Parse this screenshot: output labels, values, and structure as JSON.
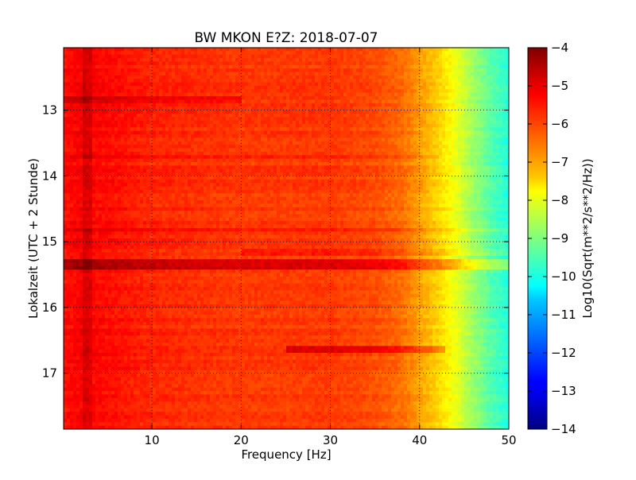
{
  "chart_data": {
    "type": "heatmap",
    "title": "BW MKON E?Z: 2018-07-07",
    "xlabel": "Frequency [Hz]",
    "ylabel": "Lokalzeit (UTC + 2 Stunde)",
    "xlim": [
      0.1,
      50
    ],
    "ylim": [
      12.05,
      17.85
    ],
    "y_inverted": true,
    "xticks": [
      10,
      20,
      30,
      40,
      50
    ],
    "yticks": [
      13,
      14,
      15,
      16,
      17
    ],
    "grid": true,
    "colorscale": "jet",
    "colorbar": {
      "label": "Log10(Sqrt(m**2/s**2/Hz))",
      "range": [
        -14,
        -4
      ],
      "ticks": [
        -4,
        -5,
        -6,
        -7,
        -8,
        -9,
        -10,
        -11,
        -12,
        -13,
        -14
      ]
    },
    "frequency_profile": {
      "frequency_hz": [
        0,
        2,
        10,
        20,
        30,
        35,
        38,
        40,
        42,
        44,
        46,
        48,
        50
      ],
      "log10_amplitude": [
        -5.4,
        -5.2,
        -5.6,
        -5.8,
        -5.8,
        -6.0,
        -6.3,
        -6.8,
        -7.3,
        -7.9,
        -8.7,
        -9.4,
        -9.9
      ]
    },
    "high_energy_bands": [
      {
        "time": 12.85,
        "from_hz": 0,
        "to_hz": 20,
        "delta": 0.5
      },
      {
        "time": 13.7,
        "from_hz": 0,
        "to_hz": 42,
        "delta": 0.4
      },
      {
        "time": 14.83,
        "from_hz": 0,
        "to_hz": 50,
        "delta": 0.35
      },
      {
        "time": 15.15,
        "from_hz": 20,
        "to_hz": 50,
        "delta": 0.4
      },
      {
        "time": 15.28,
        "from_hz": 0,
        "to_hz": 50,
        "delta": 0.9
      },
      {
        "time": 15.38,
        "from_hz": 0,
        "to_hz": 50,
        "delta": 1.0
      },
      {
        "time": 16.65,
        "from_hz": 25,
        "to_hz": 43,
        "delta": 0.8
      }
    ]
  }
}
